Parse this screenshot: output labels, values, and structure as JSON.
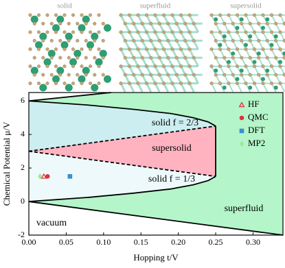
{
  "chart_data": {
    "type": "phase",
    "panels": [
      "solid",
      "superfluid",
      "supersolid"
    ],
    "xlabel": "Hopping  t/V",
    "ylabel": "Chemical Potential  μ/V",
    "xlim": [
      0,
      0.34
    ],
    "ylim": [
      -2,
      6.5
    ],
    "xticks": [
      {
        "value": 0,
        "label": "0.00"
      },
      0.05,
      {
        "value": 0.1,
        "label": "0.10"
      },
      0.15,
      {
        "value": 0.2,
        "label": "0.20"
      },
      0.25,
      {
        "value": 0.3,
        "label": "0.30"
      }
    ],
    "yticks": [
      -2,
      0,
      2,
      4,
      6
    ],
    "regions": [
      {
        "label": "superfluid",
        "color": "#b4f5c9",
        "x": [
          0,
          0.11,
          0.34,
          0.34,
          0
        ],
        "y": [
          6,
          6.5,
          6.5,
          -2,
          0
        ]
      },
      {
        "label": "solid f = 2/3",
        "color": "#cdeef0",
        "x": [
          0,
          0.08,
          0.14,
          0.19,
          0.22,
          0.24,
          0.25,
          0
        ],
        "y": [
          6,
          5.75,
          5.5,
          5.25,
          5,
          4.75,
          4.5,
          3
        ]
      },
      {
        "label": "supersolid",
        "color": "#ffb3c1",
        "x": [
          0,
          0.25,
          0.25
        ],
        "y": [
          3,
          4.5,
          1.5
        ]
      },
      {
        "label": "solid f = 1/3",
        "color": "#eef9fb",
        "x": [
          0,
          0.25,
          0.24,
          0.22,
          0.19,
          0.14,
          0.08,
          0
        ],
        "y": [
          3,
          1.5,
          1.25,
          1,
          0.75,
          0.5,
          0.25,
          0
        ]
      },
      {
        "label": "vacuum",
        "color": "#ffffff",
        "x": [
          0,
          0.34,
          0
        ],
        "y": [
          0,
          -2,
          -2
        ]
      }
    ],
    "lines": [
      {
        "style": "solid",
        "x": [
          0,
          0.11
        ],
        "y": [
          6,
          6.5
        ]
      },
      {
        "style": "solid",
        "x": [
          0,
          0.34
        ],
        "y": [
          0,
          -2
        ]
      },
      {
        "style": "solid",
        "x": [
          0,
          0.08,
          0.14,
          0.19,
          0.22,
          0.24,
          0.25
        ],
        "y": [
          6,
          5.75,
          5.5,
          5.25,
          5,
          4.75,
          4.5
        ]
      },
      {
        "style": "solid",
        "x": [
          0,
          0.08,
          0.14,
          0.19,
          0.22,
          0.24,
          0.25
        ],
        "y": [
          0,
          0.25,
          0.5,
          0.75,
          1,
          1.25,
          1.5
        ]
      },
      {
        "style": "solid",
        "x": [
          0.25,
          0.25
        ],
        "y": [
          1.5,
          4.5
        ]
      },
      {
        "style": "dashed",
        "x": [
          0,
          0.25
        ],
        "y": [
          3,
          4.5
        ]
      },
      {
        "style": "dashed",
        "x": [
          0,
          0.25
        ],
        "y": [
          3,
          1.5
        ]
      }
    ],
    "series": [
      {
        "name": "HF",
        "marker": "triangle",
        "color": "#e0303a",
        "x": [
          0.02
        ],
        "y": [
          1.5
        ]
      },
      {
        "name": "QMC",
        "marker": "circle",
        "color": "#e0303a",
        "x": [
          0.025
        ],
        "y": [
          1.5
        ]
      },
      {
        "name": "DFT",
        "marker": "square",
        "color": "#3a8fd0",
        "x": [
          0.055
        ],
        "y": [
          1.5
        ]
      },
      {
        "name": "MP2",
        "marker": "diamond",
        "color": "#9fe8a0",
        "x": [
          0.015
        ],
        "y": [
          1.5
        ]
      }
    ]
  }
}
